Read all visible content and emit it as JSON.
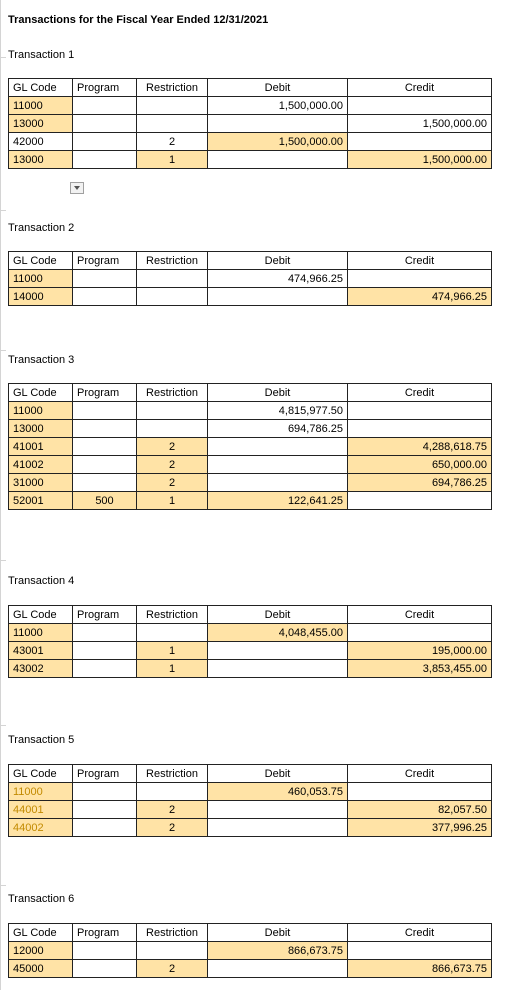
{
  "title": "Transactions for the Fiscal Year Ended 12/31/2021",
  "headers": {
    "gl_code": "GL Code",
    "program": "Program",
    "restriction": "Restriction",
    "debit": "Debit",
    "credit": "Credit"
  },
  "transactions": [
    {
      "label": "Transaction 1",
      "rows": [
        {
          "gl": "11000",
          "program": "",
          "restriction": "",
          "debit": "1,500,000.00",
          "credit": ""
        },
        {
          "gl": "13000",
          "program": "",
          "restriction": "",
          "debit": "",
          "credit": "1,500,000.00"
        },
        {
          "gl": "42000",
          "program": "",
          "restriction": "2",
          "debit": "1,500,000.00",
          "credit": ""
        },
        {
          "gl": "13000",
          "program": "",
          "restriction": "1",
          "debit": "",
          "credit": "1,500,000.00"
        }
      ]
    },
    {
      "label": "Transaction 2",
      "rows": [
        {
          "gl": "11000",
          "program": "",
          "restriction": "",
          "debit": "474,966.25",
          "credit": ""
        },
        {
          "gl": "14000",
          "program": "",
          "restriction": "",
          "debit": "",
          "credit": "474,966.25"
        }
      ]
    },
    {
      "label": "Transaction 3",
      "rows": [
        {
          "gl": "11000",
          "program": "",
          "restriction": "",
          "debit": "4,815,977.50",
          "credit": ""
        },
        {
          "gl": "13000",
          "program": "",
          "restriction": "",
          "debit": "694,786.25",
          "credit": ""
        },
        {
          "gl": "41001",
          "program": "",
          "restriction": "2",
          "debit": "",
          "credit": "4,288,618.75"
        },
        {
          "gl": "41002",
          "program": "",
          "restriction": "2",
          "debit": "",
          "credit": "650,000.00"
        },
        {
          "gl": "31000",
          "program": "",
          "restriction": "2",
          "debit": "",
          "credit": "694,786.25"
        },
        {
          "gl": "52001",
          "program": "500",
          "restriction": "1",
          "debit": "122,641.25",
          "credit": ""
        }
      ]
    },
    {
      "label": "Transaction 4",
      "rows": [
        {
          "gl": "11000",
          "program": "",
          "restriction": "",
          "debit": "4,048,455.00",
          "credit": ""
        },
        {
          "gl": "43001",
          "program": "",
          "restriction": "1",
          "debit": "",
          "credit": "195,000.00"
        },
        {
          "gl": "43002",
          "program": "",
          "restriction": "1",
          "debit": "",
          "credit": "3,853,455.00"
        }
      ]
    },
    {
      "label": "Transaction 5",
      "rows": [
        {
          "gl": "11000",
          "program": "",
          "restriction": "",
          "debit": "460,053.75",
          "credit": ""
        },
        {
          "gl": "44001",
          "program": "",
          "restriction": "2",
          "debit": "",
          "credit": "82,057.50"
        },
        {
          "gl": "44002",
          "program": "",
          "restriction": "2",
          "debit": "",
          "credit": "377,996.25"
        }
      ]
    },
    {
      "label": "Transaction 6",
      "rows": [
        {
          "gl": "12000",
          "program": "",
          "restriction": "",
          "debit": "866,673.75",
          "credit": ""
        },
        {
          "gl": "45000",
          "program": "",
          "restriction": "2",
          "debit": "",
          "credit": "866,673.75"
        }
      ]
    }
  ],
  "colors": {
    "highlight": "#ffe3a6",
    "orange_text": "#c28a00"
  },
  "icons": {
    "filter": "dropdown-arrow-icon"
  }
}
